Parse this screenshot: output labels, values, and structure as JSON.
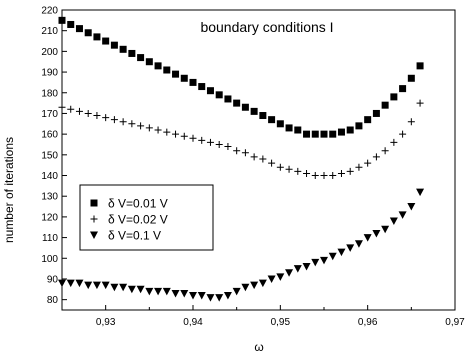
{
  "chart_data": {
    "type": "scatter",
    "title": "boundary conditions I",
    "xlabel": "ω",
    "ylabel": "number of iterations",
    "xlim": [
      0.925,
      0.97
    ],
    "ylim": [
      75,
      220
    ],
    "x_ticks": [
      "0,93",
      "0,94",
      "0,95",
      "0,96",
      "0,97"
    ],
    "x_tick_values": [
      0.93,
      0.94,
      0.95,
      0.96,
      0.97
    ],
    "y_ticks": [
      "80",
      "90",
      "100",
      "110",
      "120",
      "130",
      "140",
      "150",
      "160",
      "170",
      "180",
      "190",
      "200",
      "210",
      "220"
    ],
    "y_tick_values": [
      80,
      90,
      100,
      110,
      120,
      130,
      140,
      150,
      160,
      170,
      180,
      190,
      200,
      210,
      220
    ],
    "legend_position": "left-center",
    "series": [
      {
        "name": "δ V=0.01 V",
        "marker": "square",
        "x": [
          0.925,
          0.926,
          0.927,
          0.928,
          0.929,
          0.93,
          0.931,
          0.932,
          0.933,
          0.934,
          0.935,
          0.936,
          0.937,
          0.938,
          0.939,
          0.94,
          0.941,
          0.942,
          0.943,
          0.944,
          0.945,
          0.946,
          0.947,
          0.948,
          0.949,
          0.95,
          0.951,
          0.952,
          0.953,
          0.954,
          0.955,
          0.956,
          0.957,
          0.958,
          0.959,
          0.96,
          0.961,
          0.962,
          0.963,
          0.964,
          0.965,
          0.966
        ],
        "y": [
          215,
          213,
          211,
          209,
          207,
          205,
          203,
          201,
          199,
          197,
          195,
          193,
          191,
          189,
          187,
          185,
          183,
          181,
          179,
          177,
          175,
          173,
          171,
          169,
          167,
          165,
          163,
          162,
          160,
          160,
          160,
          160,
          161,
          162,
          164,
          167,
          170,
          174,
          178,
          182,
          187,
          193
        ]
      },
      {
        "name": "δ V=0.02 V",
        "marker": "plus",
        "x": [
          0.925,
          0.926,
          0.927,
          0.928,
          0.929,
          0.93,
          0.931,
          0.932,
          0.933,
          0.934,
          0.935,
          0.936,
          0.937,
          0.938,
          0.939,
          0.94,
          0.941,
          0.942,
          0.943,
          0.944,
          0.945,
          0.946,
          0.947,
          0.948,
          0.949,
          0.95,
          0.951,
          0.952,
          0.953,
          0.954,
          0.955,
          0.956,
          0.957,
          0.958,
          0.959,
          0.96,
          0.961,
          0.962,
          0.963,
          0.964,
          0.965,
          0.966
        ],
        "y": [
          173,
          172,
          171,
          170,
          169,
          168,
          167,
          166,
          165,
          164,
          163,
          162,
          161,
          160,
          159,
          158,
          157,
          156,
          155,
          154,
          152,
          151,
          149,
          148,
          146,
          144,
          143,
          142,
          141,
          140,
          140,
          140,
          141,
          142,
          144,
          146,
          149,
          152,
          156,
          160,
          166,
          175
        ]
      },
      {
        "name": "δ V=0.1 V",
        "marker": "triangle-down",
        "x": [
          0.925,
          0.926,
          0.927,
          0.928,
          0.929,
          0.93,
          0.931,
          0.932,
          0.933,
          0.934,
          0.935,
          0.936,
          0.937,
          0.938,
          0.939,
          0.94,
          0.941,
          0.942,
          0.943,
          0.944,
          0.945,
          0.946,
          0.947,
          0.948,
          0.949,
          0.95,
          0.951,
          0.952,
          0.953,
          0.954,
          0.955,
          0.956,
          0.957,
          0.958,
          0.959,
          0.96,
          0.961,
          0.962,
          0.963,
          0.964,
          0.965,
          0.966
        ],
        "y": [
          88,
          88,
          88,
          87,
          87,
          87,
          86,
          86,
          85,
          85,
          84,
          84,
          84,
          83,
          83,
          82,
          82,
          81,
          81,
          82,
          84,
          86,
          87,
          88,
          90,
          91,
          93,
          95,
          96,
          98,
          99,
          101,
          103,
          105,
          107,
          110,
          112,
          114,
          118,
          121,
          125,
          132
        ]
      }
    ]
  }
}
